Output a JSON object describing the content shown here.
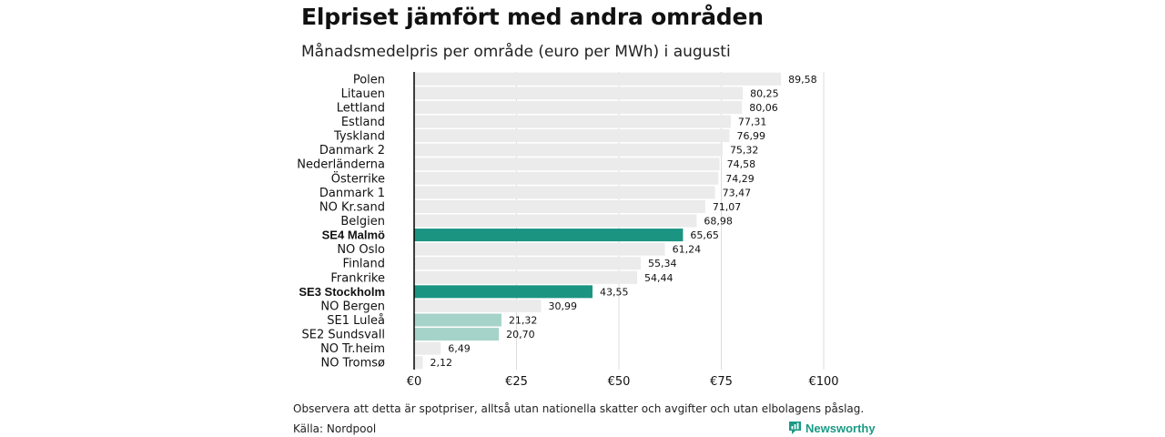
{
  "title": "Elpriset jämfört med andra områden",
  "subtitle": "Månadsmedelpris per område (euro per MWh) i augusti",
  "footer": {
    "note": "Observera att detta är spotpriser, alltså utan nationella skatter och avgifter och utan elbolagens påslag.",
    "source": "Källa: Nordpool",
    "brand": "Newsworthy",
    "brand_icon": "newsworthy-logo-icon"
  },
  "colors": {
    "default_bar": "#ebebeb",
    "highlight_bar": "#1b9482",
    "light_highlight_bar": "#a6d3c9",
    "grid": "#dcdcdc",
    "axis": "#000000",
    "brand": "#1a9a85"
  },
  "chart_data": {
    "type": "bar",
    "orientation": "horizontal",
    "categories": [
      "Polen",
      "Litauen",
      "Lettland",
      "Estland",
      "Tyskland",
      "Danmark  2",
      "Nederländerna",
      "Österrike",
      "Danmark  1",
      "NO Kr.sand",
      "Belgien",
      "SE4 Malmö",
      "NO Oslo",
      "Finland",
      "Frankrike",
      "SE3 Stockholm",
      "NO Bergen",
      "SE1  Luleå",
      "SE2  Sundsvall",
      "NO Tr.heim",
      "NO Tromsø"
    ],
    "values": [
      89.58,
      80.25,
      80.06,
      77.31,
      76.99,
      75.32,
      74.58,
      74.29,
      73.47,
      71.07,
      68.98,
      65.65,
      61.24,
      55.34,
      54.44,
      43.55,
      30.99,
      21.32,
      20.7,
      6.49,
      2.12
    ],
    "value_labels": [
      "89,58",
      "80,25",
      "80,06",
      "77,31",
      "76,99",
      "75,32",
      "74,58",
      "74,29",
      "73,47",
      "71,07",
      "68,98",
      "65,65",
      "61,24",
      "55,34",
      "54,44",
      "43,55",
      "30,99",
      "21,32",
      "20,70",
      "6,49",
      "2,12"
    ],
    "highlight": [
      "none",
      "none",
      "none",
      "none",
      "none",
      "none",
      "none",
      "none",
      "none",
      "none",
      "none",
      "strong",
      "none",
      "none",
      "none",
      "strong",
      "none",
      "light",
      "light",
      "none",
      "none"
    ],
    "xlim": [
      0,
      100
    ],
    "x_ticks": [
      0,
      25,
      50,
      75,
      100
    ],
    "x_tick_labels": [
      "€0",
      "€25",
      "€50",
      "€75",
      "€100"
    ],
    "grid": "vertical",
    "legend": "none"
  }
}
